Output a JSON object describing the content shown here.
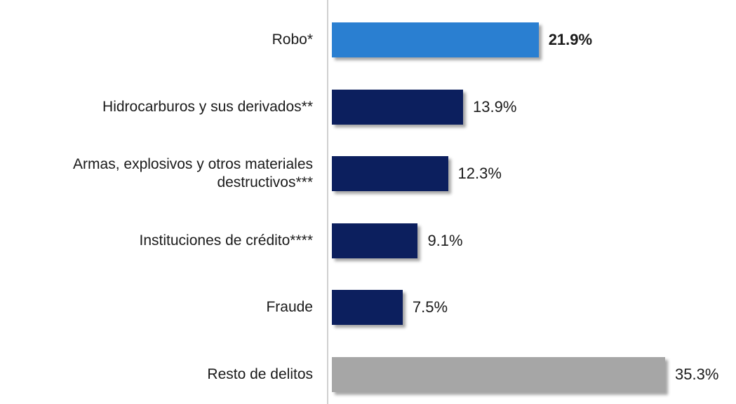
{
  "chart_data": {
    "type": "hbar",
    "categories": [
      "Robo*",
      "Hidrocarburos y sus derivados**",
      "Armas, explosivos y otros materiales destructivos***",
      "Instituciones de crédito****",
      "Fraude",
      "Resto de delitos"
    ],
    "values": [
      21.9,
      13.9,
      12.3,
      9.1,
      7.5,
      35.3
    ],
    "value_labels": [
      "21.9%",
      "13.9%",
      "12.3%",
      "9.1%",
      "7.5%",
      "35.3%"
    ],
    "colors": [
      "#2a7fd1",
      "#0c1f5e",
      "#0c1f5e",
      "#0c1f5e",
      "#0c1f5e",
      "#a6a6a6"
    ],
    "label_bold": [
      true,
      false,
      false,
      false,
      false,
      false
    ]
  }
}
